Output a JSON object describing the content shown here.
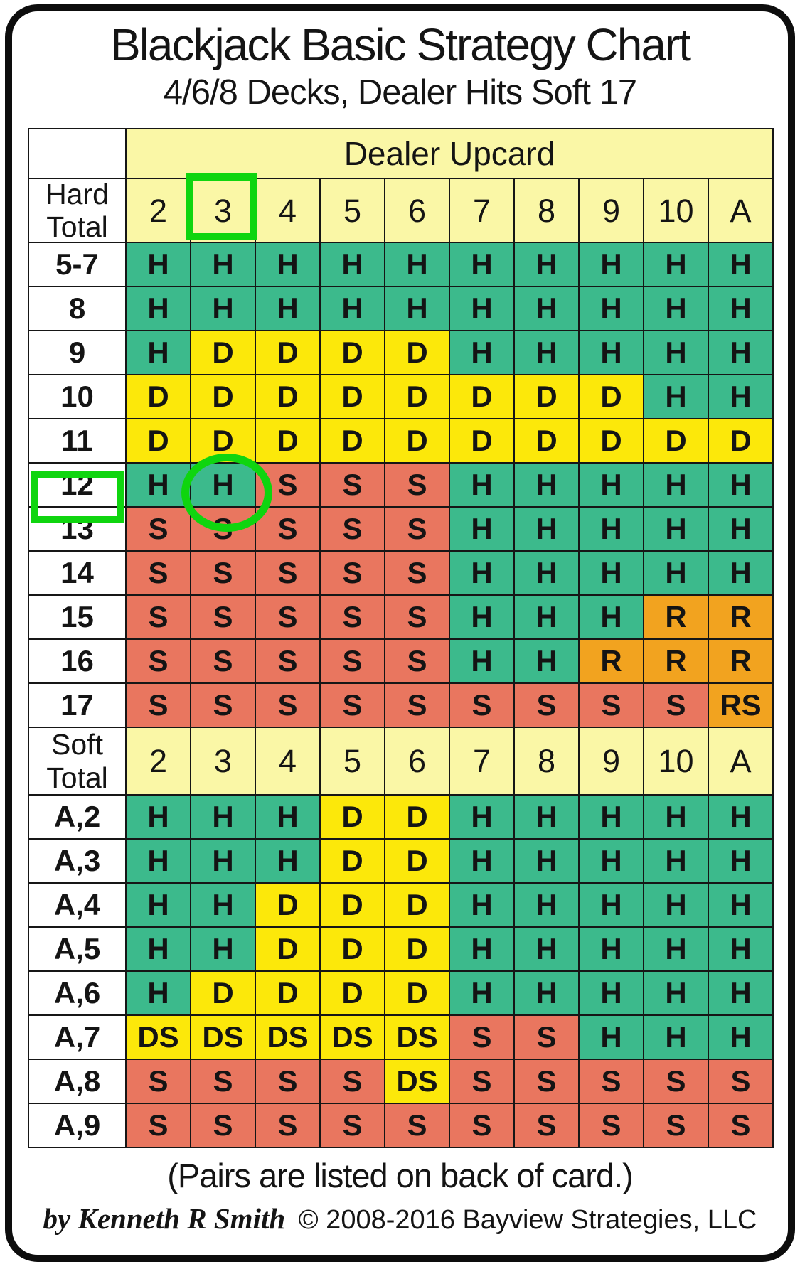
{
  "title": "Blackjack Basic Strategy Chart",
  "subtitle": "4/6/8 Decks, Dealer Hits Soft 17",
  "chart_data": {
    "type": "table",
    "title": "Blackjack Basic Strategy Chart",
    "subtitle": "4/6/8 Decks, Dealer Hits Soft 17",
    "dealer_header": "Dealer Upcard",
    "columns": [
      "2",
      "3",
      "4",
      "5",
      "6",
      "7",
      "8",
      "9",
      "10",
      "A"
    ],
    "sections": [
      {
        "label": "Hard Total",
        "label_lines": [
          "Hard",
          "Total"
        ],
        "rows": [
          {
            "label": "5-7",
            "values": [
              "H",
              "H",
              "H",
              "H",
              "H",
              "H",
              "H",
              "H",
              "H",
              "H"
            ]
          },
          {
            "label": "8",
            "values": [
              "H",
              "H",
              "H",
              "H",
              "H",
              "H",
              "H",
              "H",
              "H",
              "H"
            ]
          },
          {
            "label": "9",
            "values": [
              "H",
              "D",
              "D",
              "D",
              "D",
              "H",
              "H",
              "H",
              "H",
              "H"
            ]
          },
          {
            "label": "10",
            "values": [
              "D",
              "D",
              "D",
              "D",
              "D",
              "D",
              "D",
              "D",
              "H",
              "H"
            ]
          },
          {
            "label": "11",
            "values": [
              "D",
              "D",
              "D",
              "D",
              "D",
              "D",
              "D",
              "D",
              "D",
              "D"
            ]
          },
          {
            "label": "12",
            "values": [
              "H",
              "H",
              "S",
              "S",
              "S",
              "H",
              "H",
              "H",
              "H",
              "H"
            ]
          },
          {
            "label": "13",
            "values": [
              "S",
              "S",
              "S",
              "S",
              "S",
              "H",
              "H",
              "H",
              "H",
              "H"
            ]
          },
          {
            "label": "14",
            "values": [
              "S",
              "S",
              "S",
              "S",
              "S",
              "H",
              "H",
              "H",
              "H",
              "H"
            ]
          },
          {
            "label": "15",
            "values": [
              "S",
              "S",
              "S",
              "S",
              "S",
              "H",
              "H",
              "H",
              "R",
              "R"
            ]
          },
          {
            "label": "16",
            "values": [
              "S",
              "S",
              "S",
              "S",
              "S",
              "H",
              "H",
              "R",
              "R",
              "R"
            ]
          },
          {
            "label": "17",
            "values": [
              "S",
              "S",
              "S",
              "S",
              "S",
              "S",
              "S",
              "S",
              "S",
              "RS"
            ]
          }
        ]
      },
      {
        "label": "Soft Total",
        "label_lines": [
          "Soft",
          "Total"
        ],
        "rows": [
          {
            "label": "A,2",
            "values": [
              "H",
              "H",
              "H",
              "D",
              "D",
              "H",
              "H",
              "H",
              "H",
              "H"
            ]
          },
          {
            "label": "A,3",
            "values": [
              "H",
              "H",
              "H",
              "D",
              "D",
              "H",
              "H",
              "H",
              "H",
              "H"
            ]
          },
          {
            "label": "A,4",
            "values": [
              "H",
              "H",
              "D",
              "D",
              "D",
              "H",
              "H",
              "H",
              "H",
              "H"
            ]
          },
          {
            "label": "A,5",
            "values": [
              "H",
              "H",
              "D",
              "D",
              "D",
              "H",
              "H",
              "H",
              "H",
              "H"
            ]
          },
          {
            "label": "A,6",
            "values": [
              "H",
              "D",
              "D",
              "D",
              "D",
              "H",
              "H",
              "H",
              "H",
              "H"
            ]
          },
          {
            "label": "A,7",
            "values": [
              "DS",
              "DS",
              "DS",
              "DS",
              "DS",
              "S",
              "S",
              "H",
              "H",
              "H"
            ]
          },
          {
            "label": "A,8",
            "values": [
              "S",
              "S",
              "S",
              "S",
              "DS",
              "S",
              "S",
              "S",
              "S",
              "S"
            ]
          },
          {
            "label": "A,9",
            "values": [
              "S",
              "S",
              "S",
              "S",
              "S",
              "S",
              "S",
              "S",
              "S",
              "S"
            ]
          }
        ]
      }
    ],
    "action_colors": {
      "H": "#3cba8c",
      "D": "#fce80a",
      "S": "#e9765f",
      "R": "#f2a31f",
      "DS": "#fce80a",
      "RS": "#f2a31f"
    },
    "header_bg": "#faf7a6",
    "label_bg": "#ffffff",
    "grid_line": "#161616"
  },
  "annotations": {
    "highlight_color": "#0fd50f",
    "column_box": {
      "section": 0,
      "col": "3"
    },
    "row_box": {
      "section": 0,
      "row": "12"
    },
    "cell_circle": {
      "section": 0,
      "row": "12",
      "col": "3"
    }
  },
  "footer": {
    "pairs_note": "(Pairs are listed on back of card.)",
    "author": "by Kenneth R Smith",
    "copyright": "© 2008-2016 Bayview Strategies, LLC"
  }
}
